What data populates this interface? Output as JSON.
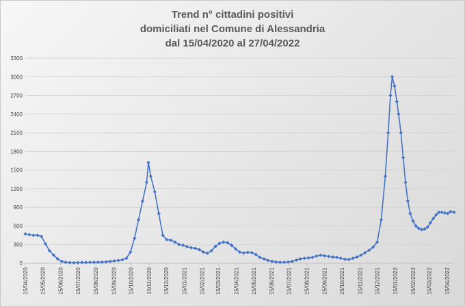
{
  "chart_data": {
    "type": "line",
    "title": [
      "Trend n° cittadini positivi",
      "domiciliati nel Comune di Alessandria",
      "dal 15/04/2020 al 27/04/2022"
    ],
    "xlabel": "",
    "ylabel": "",
    "x_range": [
      "2020-04-15",
      "2022-04-27"
    ],
    "ylim": [
      0,
      3300
    ],
    "yticks": [
      0,
      300,
      600,
      900,
      1200,
      1500,
      1800,
      2100,
      2400,
      2700,
      3000,
      3300
    ],
    "xtick_labels": [
      "15/04/2020",
      "15/05/2020",
      "15/06/2020",
      "15/07/2020",
      "15/08/2020",
      "15/09/2020",
      "15/10/2020",
      "15/11/2020",
      "15/12/2020",
      "15/01/2021",
      "15/02/2021",
      "15/03/2021",
      "15/04/2021",
      "15/05/2021",
      "15/06/2021",
      "15/07/2021",
      "15/08/2021",
      "15/09/2021",
      "15/10/2021",
      "15/11/2021",
      "15/12/2021",
      "15/01/2022",
      "15/02/2022",
      "15/03/2022",
      "15/04/2022"
    ],
    "grid": "horizontal",
    "legend": "none",
    "colors": {
      "line": "#4472c4",
      "marker": "#4472c4",
      "grid": "#d4d4d4"
    },
    "marker": "diamond",
    "points": [
      [
        "2020-04-15",
        470
      ],
      [
        "2020-04-22",
        460
      ],
      [
        "2020-04-29",
        450
      ],
      [
        "2020-05-06",
        450
      ],
      [
        "2020-05-13",
        430
      ],
      [
        "2020-05-20",
        310
      ],
      [
        "2020-05-27",
        200
      ],
      [
        "2020-06-03",
        130
      ],
      [
        "2020-06-10",
        70
      ],
      [
        "2020-06-17",
        30
      ],
      [
        "2020-06-24",
        15
      ],
      [
        "2020-07-01",
        10
      ],
      [
        "2020-07-08",
        8
      ],
      [
        "2020-07-15",
        10
      ],
      [
        "2020-07-22",
        12
      ],
      [
        "2020-07-29",
        12
      ],
      [
        "2020-08-05",
        15
      ],
      [
        "2020-08-12",
        15
      ],
      [
        "2020-08-19",
        18
      ],
      [
        "2020-08-26",
        18
      ],
      [
        "2020-09-02",
        22
      ],
      [
        "2020-09-09",
        30
      ],
      [
        "2020-09-16",
        38
      ],
      [
        "2020-09-23",
        45
      ],
      [
        "2020-09-30",
        55
      ],
      [
        "2020-10-07",
        80
      ],
      [
        "2020-10-14",
        180
      ],
      [
        "2020-10-21",
        400
      ],
      [
        "2020-10-28",
        700
      ],
      [
        "2020-11-04",
        1000
      ],
      [
        "2020-11-11",
        1300
      ],
      [
        "2020-11-14",
        1620
      ],
      [
        "2020-11-18",
        1400
      ],
      [
        "2020-11-25",
        1150
      ],
      [
        "2020-12-02",
        800
      ],
      [
        "2020-12-09",
        450
      ],
      [
        "2020-12-16",
        380
      ],
      [
        "2020-12-23",
        370
      ],
      [
        "2020-12-30",
        340
      ],
      [
        "2021-01-06",
        300
      ],
      [
        "2021-01-13",
        290
      ],
      [
        "2021-01-20",
        265
      ],
      [
        "2021-01-27",
        250
      ],
      [
        "2021-02-03",
        240
      ],
      [
        "2021-02-10",
        220
      ],
      [
        "2021-02-17",
        180
      ],
      [
        "2021-02-24",
        160
      ],
      [
        "2021-03-03",
        200
      ],
      [
        "2021-03-10",
        270
      ],
      [
        "2021-03-17",
        320
      ],
      [
        "2021-03-24",
        340
      ],
      [
        "2021-03-31",
        330
      ],
      [
        "2021-04-07",
        290
      ],
      [
        "2021-04-14",
        230
      ],
      [
        "2021-04-21",
        180
      ],
      [
        "2021-04-28",
        165
      ],
      [
        "2021-05-05",
        175
      ],
      [
        "2021-05-12",
        170
      ],
      [
        "2021-05-19",
        140
      ],
      [
        "2021-05-26",
        95
      ],
      [
        "2021-06-02",
        70
      ],
      [
        "2021-06-09",
        45
      ],
      [
        "2021-06-16",
        30
      ],
      [
        "2021-06-23",
        20
      ],
      [
        "2021-06-30",
        15
      ],
      [
        "2021-07-07",
        15
      ],
      [
        "2021-07-14",
        20
      ],
      [
        "2021-07-21",
        30
      ],
      [
        "2021-07-28",
        50
      ],
      [
        "2021-08-04",
        70
      ],
      [
        "2021-08-11",
        80
      ],
      [
        "2021-08-18",
        85
      ],
      [
        "2021-08-25",
        95
      ],
      [
        "2021-09-01",
        115
      ],
      [
        "2021-09-08",
        130
      ],
      [
        "2021-09-15",
        120
      ],
      [
        "2021-09-22",
        110
      ],
      [
        "2021-09-29",
        100
      ],
      [
        "2021-10-06",
        95
      ],
      [
        "2021-10-13",
        80
      ],
      [
        "2021-10-20",
        65
      ],
      [
        "2021-10-27",
        60
      ],
      [
        "2021-11-03",
        80
      ],
      [
        "2021-11-10",
        100
      ],
      [
        "2021-11-17",
        130
      ],
      [
        "2021-11-24",
        170
      ],
      [
        "2021-12-01",
        210
      ],
      [
        "2021-12-08",
        260
      ],
      [
        "2021-12-15",
        340
      ],
      [
        "2021-12-22",
        700
      ],
      [
        "2021-12-29",
        1400
      ],
      [
        "2022-01-03",
        2100
      ],
      [
        "2022-01-07",
        2700
      ],
      [
        "2022-01-10",
        3000
      ],
      [
        "2022-01-14",
        2850
      ],
      [
        "2022-01-18",
        2600
      ],
      [
        "2022-01-21",
        2400
      ],
      [
        "2022-01-25",
        2100
      ],
      [
        "2022-01-29",
        1700
      ],
      [
        "2022-02-02",
        1300
      ],
      [
        "2022-02-06",
        1000
      ],
      [
        "2022-02-10",
        800
      ],
      [
        "2022-02-15",
        680
      ],
      [
        "2022-02-20",
        600
      ],
      [
        "2022-02-25",
        560
      ],
      [
        "2022-03-02",
        540
      ],
      [
        "2022-03-07",
        550
      ],
      [
        "2022-03-12",
        580
      ],
      [
        "2022-03-17",
        650
      ],
      [
        "2022-03-22",
        720
      ],
      [
        "2022-03-27",
        780
      ],
      [
        "2022-04-01",
        820
      ],
      [
        "2022-04-06",
        820
      ],
      [
        "2022-04-11",
        810
      ],
      [
        "2022-04-16",
        800
      ],
      [
        "2022-04-21",
        830
      ],
      [
        "2022-04-27",
        820
      ]
    ]
  }
}
